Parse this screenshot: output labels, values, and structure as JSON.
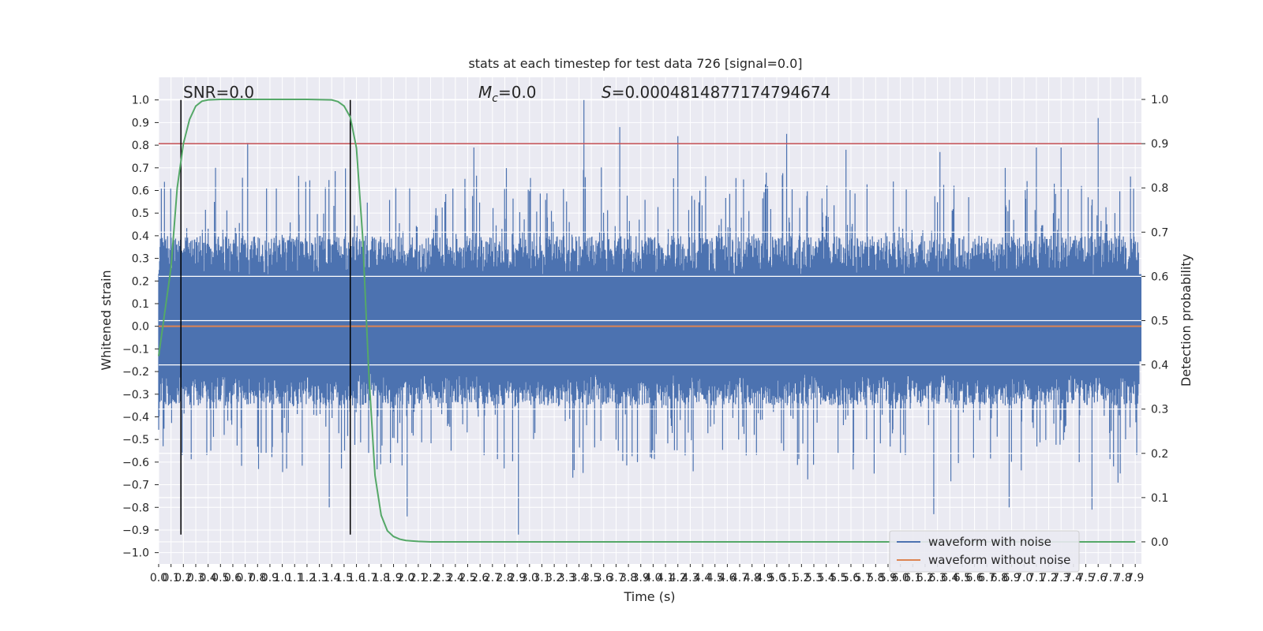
{
  "chart_data": {
    "type": "line",
    "title": "stats at each timestep for test data 726 [signal=0.0]",
    "xlabel": "Time (s)",
    "ylabel": "Whitened strain",
    "y2label": "Detection probability",
    "xlim": [
      0.0,
      7.95
    ],
    "ylim": [
      -1.05,
      1.1
    ],
    "y2lim": [
      -0.05,
      1.05
    ],
    "x_ticks": [
      "0.0",
      "0.1",
      "0.2",
      "0.3",
      "0.4",
      "0.5",
      "0.6",
      "0.7",
      "0.8",
      "0.9",
      "1.0",
      "1.1",
      "1.2",
      "1.3",
      "1.4",
      "1.5",
      "1.6",
      "1.7",
      "1.8",
      "1.9",
      "2.0",
      "2.1",
      "2.2",
      "2.3",
      "2.4",
      "2.5",
      "2.6",
      "2.7",
      "2.8",
      "2.9",
      "3.0",
      "3.1",
      "3.2",
      "3.3",
      "3.4",
      "3.5",
      "3.6",
      "3.7",
      "3.8",
      "3.9",
      "4.0",
      "4.1",
      "4.2",
      "4.3",
      "4.4",
      "4.5",
      "4.6",
      "4.7",
      "4.8",
      "4.9",
      "5.0",
      "5.1",
      "5.2",
      "5.3",
      "5.4",
      "5.5",
      "5.6",
      "5.7",
      "5.8",
      "5.9",
      "6.0",
      "6.1",
      "6.2",
      "6.3",
      "6.4",
      "6.5",
      "6.6",
      "6.7",
      "6.8",
      "6.9",
      "7.0",
      "7.1",
      "7.2",
      "7.3",
      "7.4",
      "7.5",
      "7.6",
      "7.7",
      "7.8",
      "7.9"
    ],
    "y_ticks": [
      "1.0",
      "0.9",
      "0.8",
      "0.7",
      "0.6",
      "0.5",
      "0.4",
      "0.3",
      "0.2",
      "0.1",
      "0.0",
      "−0.1",
      "−0.2",
      "−0.3",
      "−0.4",
      "−0.5",
      "−0.6",
      "−0.7",
      "−0.8",
      "−0.9",
      "−1.0"
    ],
    "y2_ticks": [
      "1.0",
      "0.9",
      "0.8",
      "0.7",
      "0.6",
      "0.5",
      "0.4",
      "0.3",
      "0.2",
      "0.1",
      "0.0"
    ],
    "annotations": {
      "snr": "SNR=0.0",
      "mc_symbol": "M",
      "mc_sub": "c",
      "mc_value": "=0.0",
      "s_symbol": "S",
      "s_value": "=0.0004814877174794674"
    },
    "legend": {
      "placement": "lower right",
      "entries": [
        "waveform with noise",
        "waveform without noise"
      ]
    },
    "grid": true,
    "series": [
      {
        "name": "waveform with noise",
        "color": "#4c72b0",
        "style": "noise",
        "core_range": [
          -0.35,
          0.4
        ],
        "spike_range": [
          -0.92,
          1.0
        ],
        "sample_count": 2200
      },
      {
        "name": "waveform without noise",
        "color": "#dd8452",
        "x": [
          0.0,
          7.95
        ],
        "y": [
          0.0,
          0.0
        ]
      },
      {
        "color": "#55a868",
        "axis": "right",
        "x": [
          0.0,
          0.1,
          0.15,
          0.2,
          0.25,
          0.3,
          0.35,
          0.4,
          0.5,
          0.6,
          0.8,
          1.0,
          1.2,
          1.4,
          1.45,
          1.5,
          1.55,
          1.6,
          1.65,
          1.7,
          1.75,
          1.8,
          1.85,
          1.9,
          1.95,
          2.0,
          2.05,
          2.1,
          2.2,
          2.4,
          3.0,
          4.0,
          5.0,
          6.0,
          7.0,
          7.9
        ],
        "y": [
          0.42,
          0.62,
          0.8,
          0.9,
          0.955,
          0.985,
          0.996,
          0.999,
          1.0,
          1.0,
          1.0,
          1.0,
          1.0,
          0.999,
          0.995,
          0.985,
          0.96,
          0.89,
          0.69,
          0.38,
          0.15,
          0.06,
          0.025,
          0.012,
          0.006,
          0.003,
          0.002,
          0.001,
          0.0,
          0.0,
          0.0,
          0.0,
          0.0,
          0.0,
          0.0,
          0.0
        ]
      }
    ],
    "threshold_line": {
      "axis": "right",
      "value": 0.9,
      "color": "#c44e52"
    },
    "vertical_lines": {
      "x": [
        0.18,
        1.55
      ],
      "y_range": [
        -0.92,
        1.0
      ],
      "color": "#000000"
    },
    "spikes": [
      [
        3.44,
        1.0
      ],
      [
        5.08,
        0.85
      ],
      [
        7.6,
        0.92
      ],
      [
        0.72,
        0.81
      ],
      [
        3.73,
        0.88
      ],
      [
        2.91,
        -0.92
      ],
      [
        2.01,
        -0.84
      ],
      [
        6.27,
        -0.83
      ],
      [
        7.55,
        -0.81
      ],
      [
        0.18,
        -0.84
      ],
      [
        4.2,
        0.84
      ],
      [
        5.56,
        0.78
      ],
      [
        6.32,
        0.77
      ],
      [
        7.1,
        0.79
      ],
      [
        7.3,
        0.79
      ],
      [
        1.38,
        -0.8
      ],
      [
        1.55,
        -0.81
      ],
      [
        6.88,
        -0.8
      ],
      [
        2.55,
        0.79
      ],
      [
        0.46,
        0.7
      ]
    ]
  }
}
